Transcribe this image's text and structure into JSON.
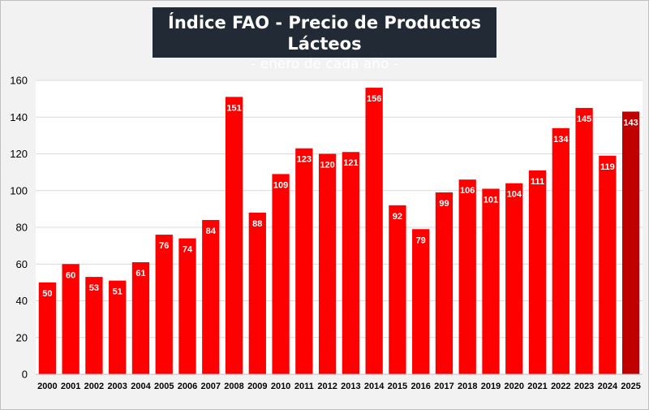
{
  "chart_data": {
    "type": "bar",
    "title": "Índice FAO - Precio de Productos Lácteos",
    "subtitle": "- enero de cada año -",
    "xlabel": "",
    "ylabel": "",
    "ylim": [
      0,
      160
    ],
    "yticks": [
      0,
      20,
      40,
      60,
      80,
      100,
      120,
      140,
      160
    ],
    "grid": true,
    "legend": "none",
    "categories": [
      "2000",
      "2001",
      "2002",
      "2003",
      "2004",
      "2005",
      "2006",
      "2007",
      "2008",
      "2009",
      "2010",
      "2011",
      "2012",
      "2013",
      "2014",
      "2015",
      "2016",
      "2017",
      "2018",
      "2019",
      "2020",
      "2021",
      "2022",
      "2023",
      "2024",
      "2025"
    ],
    "values": [
      50,
      60,
      53,
      51,
      61,
      76,
      74,
      84,
      151,
      88,
      109,
      123,
      120,
      121,
      156,
      92,
      79,
      99,
      106,
      101,
      104,
      111,
      134,
      145,
      119,
      143
    ],
    "data_labels": [
      "50",
      "60",
      "53",
      "51",
      "61",
      "76",
      "74",
      "84",
      "151",
      "88",
      "109",
      "123",
      "120",
      "121",
      "156",
      "92",
      "79",
      "99",
      "106",
      "101",
      "104",
      "111",
      "134",
      "145",
      "119",
      "143"
    ],
    "colors": {
      "bar": "#ff0000",
      "highlight_bar": "#c00000",
      "label": "#ffffff",
      "background": "#f2f2f2",
      "title_bg": "#222a35"
    },
    "highlight_index": 25
  }
}
